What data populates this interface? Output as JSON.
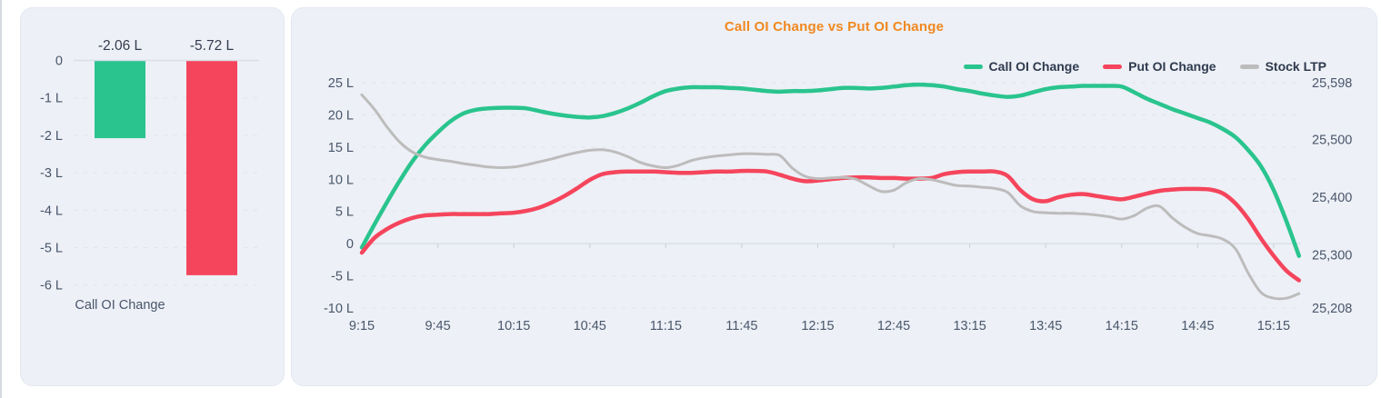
{
  "chart_data": [
    {
      "type": "bar",
      "categories": [
        "Call OI Change"
      ],
      "yticks": [
        "0",
        "-1 L",
        "-2 L",
        "-3 L",
        "-4 L",
        "-5 L",
        "-6 L"
      ],
      "ylim": [
        -6,
        0
      ],
      "series": [
        {
          "name": "Call OI Change",
          "values": [
            -2.06
          ],
          "label": "-2.06 L",
          "color": "#2ac48e"
        },
        {
          "name": "Put OI Change",
          "values": [
            -5.72
          ],
          "label": "-5.72 L",
          "color": "#f5455c"
        }
      ]
    },
    {
      "type": "line",
      "title": "Call OI Change vs Put OI Change",
      "title_color": "#f08820",
      "legend_position": "top-right",
      "grid": "dashed-horizontal",
      "x_tick_labels": [
        "9:15",
        "9:45",
        "10:15",
        "10:45",
        "11:15",
        "11:45",
        "12:15",
        "12:45",
        "13:15",
        "13:45",
        "14:15",
        "14:45",
        "15:15"
      ],
      "x_tick_minutes": [
        0,
        30,
        60,
        90,
        120,
        150,
        180,
        210,
        240,
        270,
        300,
        330,
        360
      ],
      "left_axis": {
        "ticks": [
          "25 L",
          "20 L",
          "15 L",
          "10 L",
          "5 L",
          "0",
          "-5 L",
          "-10 L"
        ],
        "tick_values": [
          25,
          20,
          15,
          10,
          5,
          0,
          -5,
          -10
        ],
        "min": -10,
        "max": 25
      },
      "right_axis": {
        "ticks": [
          "25,598",
          "25,500",
          "25,400",
          "25,300",
          "25,208"
        ],
        "tick_values": [
          25598,
          25500,
          25400,
          25300,
          25208
        ],
        "min": 25208,
        "max": 25598
      },
      "series": [
        {
          "name": "Call OI Change",
          "color": "#2ac48e",
          "axis": "left",
          "width": 4.5,
          "points": [
            [
              0,
              -0.6
            ],
            [
              5,
              3
            ],
            [
              10,
              6.5
            ],
            [
              15,
              9.8
            ],
            [
              20,
              12.8
            ],
            [
              25,
              15.3
            ],
            [
              30,
              17.3
            ],
            [
              35,
              19
            ],
            [
              40,
              20.2
            ],
            [
              45,
              20.8
            ],
            [
              50,
              21
            ],
            [
              55,
              21.1
            ],
            [
              60,
              21.1
            ],
            [
              65,
              21
            ],
            [
              70,
              20.6
            ],
            [
              75,
              20.2
            ],
            [
              80,
              19.9
            ],
            [
              85,
              19.7
            ],
            [
              90,
              19.6
            ],
            [
              95,
              19.8
            ],
            [
              100,
              20.3
            ],
            [
              105,
              21
            ],
            [
              110,
              21.9
            ],
            [
              115,
              22.9
            ],
            [
              120,
              23.7
            ],
            [
              125,
              24.1
            ],
            [
              130,
              24.3
            ],
            [
              135,
              24.3
            ],
            [
              140,
              24.3
            ],
            [
              145,
              24.2
            ],
            [
              150,
              24.1
            ],
            [
              155,
              23.9
            ],
            [
              160,
              23.7
            ],
            [
              165,
              23.6
            ],
            [
              170,
              23.7
            ],
            [
              175,
              23.7
            ],
            [
              180,
              23.8
            ],
            [
              185,
              24
            ],
            [
              190,
              24.2
            ],
            [
              195,
              24.2
            ],
            [
              200,
              24.1
            ],
            [
              205,
              24.2
            ],
            [
              210,
              24.4
            ],
            [
              215,
              24.6
            ],
            [
              220,
              24.7
            ],
            [
              225,
              24.6
            ],
            [
              230,
              24.4
            ],
            [
              235,
              24
            ],
            [
              240,
              23.7
            ],
            [
              245,
              23.3
            ],
            [
              250,
              23
            ],
            [
              255,
              22.8
            ],
            [
              260,
              23
            ],
            [
              265,
              23.5
            ],
            [
              270,
              24
            ],
            [
              275,
              24.3
            ],
            [
              280,
              24.4
            ],
            [
              285,
              24.5
            ],
            [
              290,
              24.5
            ],
            [
              295,
              24.5
            ],
            [
              300,
              24.4
            ],
            [
              305,
              23.5
            ],
            [
              310,
              22.5
            ],
            [
              315,
              21.7
            ],
            [
              320,
              20.9
            ],
            [
              325,
              20.2
            ],
            [
              330,
              19.5
            ],
            [
              335,
              18.8
            ],
            [
              340,
              17.8
            ],
            [
              345,
              16.5
            ],
            [
              350,
              14.5
            ],
            [
              355,
              12
            ],
            [
              360,
              8.3
            ],
            [
              365,
              3.5
            ],
            [
              370,
              -1.9
            ]
          ]
        },
        {
          "name": "Put OI Change",
          "color": "#f5455c",
          "axis": "left",
          "width": 4.5,
          "points": [
            [
              0,
              -1.4
            ],
            [
              5,
              0.9
            ],
            [
              10,
              2.3
            ],
            [
              15,
              3.3
            ],
            [
              20,
              4
            ],
            [
              25,
              4.4
            ],
            [
              30,
              4.5
            ],
            [
              35,
              4.6
            ],
            [
              40,
              4.6
            ],
            [
              45,
              4.6
            ],
            [
              50,
              4.6
            ],
            [
              55,
              4.7
            ],
            [
              60,
              4.8
            ],
            [
              65,
              5.1
            ],
            [
              70,
              5.6
            ],
            [
              75,
              6.4
            ],
            [
              80,
              7.4
            ],
            [
              85,
              8.6
            ],
            [
              90,
              9.9
            ],
            [
              95,
              10.8
            ],
            [
              100,
              11.1
            ],
            [
              105,
              11.2
            ],
            [
              110,
              11.2
            ],
            [
              115,
              11.2
            ],
            [
              120,
              11.1
            ],
            [
              125,
              11
            ],
            [
              130,
              11
            ],
            [
              135,
              11.1
            ],
            [
              140,
              11.2
            ],
            [
              145,
              11.2
            ],
            [
              150,
              11.3
            ],
            [
              155,
              11.3
            ],
            [
              160,
              11.2
            ],
            [
              165,
              10.7
            ],
            [
              170,
              10.1
            ],
            [
              175,
              9.7
            ],
            [
              180,
              9.8
            ],
            [
              185,
              10
            ],
            [
              190,
              10.2
            ],
            [
              195,
              10.3
            ],
            [
              200,
              10.3
            ],
            [
              205,
              10.2
            ],
            [
              210,
              10.2
            ],
            [
              215,
              10.1
            ],
            [
              220,
              10.1
            ],
            [
              225,
              10.2
            ],
            [
              230,
              10.8
            ],
            [
              235,
              11.1
            ],
            [
              240,
              11.2
            ],
            [
              245,
              11.2
            ],
            [
              250,
              11.2
            ],
            [
              255,
              10.5
            ],
            [
              260,
              8.3
            ],
            [
              265,
              6.9
            ],
            [
              270,
              6.6
            ],
            [
              275,
              7.2
            ],
            [
              280,
              7.6
            ],
            [
              285,
              7.7
            ],
            [
              290,
              7.4
            ],
            [
              295,
              7.1
            ],
            [
              300,
              6.9
            ],
            [
              305,
              7.3
            ],
            [
              310,
              7.8
            ],
            [
              315,
              8.2
            ],
            [
              320,
              8.4
            ],
            [
              325,
              8.5
            ],
            [
              330,
              8.5
            ],
            [
              335,
              8.4
            ],
            [
              340,
              7.8
            ],
            [
              345,
              6.2
            ],
            [
              350,
              3.8
            ],
            [
              355,
              0.8
            ],
            [
              360,
              -1.9
            ],
            [
              365,
              -4.2
            ],
            [
              370,
              -5.7
            ]
          ]
        },
        {
          "name": "Stock LTP",
          "color": "#bdbcbc",
          "axis": "right",
          "width": 3,
          "points": [
            [
              0,
              25577
            ],
            [
              5,
              25552
            ],
            [
              10,
              25521
            ],
            [
              15,
              25495
            ],
            [
              20,
              25478
            ],
            [
              25,
              25469
            ],
            [
              30,
              25465
            ],
            [
              35,
              25462
            ],
            [
              40,
              25458
            ],
            [
              45,
              25455
            ],
            [
              50,
              25452
            ],
            [
              55,
              25451
            ],
            [
              60,
              25452
            ],
            [
              65,
              25456
            ],
            [
              70,
              25461
            ],
            [
              75,
              25466
            ],
            [
              80,
              25472
            ],
            [
              85,
              25477
            ],
            [
              90,
              25481
            ],
            [
              95,
              25482
            ],
            [
              100,
              25478
            ],
            [
              105,
              25470
            ],
            [
              110,
              25460
            ],
            [
              115,
              25454
            ],
            [
              120,
              25451
            ],
            [
              125,
              25455
            ],
            [
              130,
              25463
            ],
            [
              135,
              25468
            ],
            [
              140,
              25471
            ],
            [
              145,
              25473
            ],
            [
              150,
              25475
            ],
            [
              155,
              25475
            ],
            [
              160,
              25474
            ],
            [
              165,
              25472
            ],
            [
              170,
              25450
            ],
            [
              175,
              25436
            ],
            [
              180,
              25432
            ],
            [
              185,
              25433
            ],
            [
              190,
              25434
            ],
            [
              195,
              25431
            ],
            [
              200,
              25420
            ],
            [
              205,
              25410
            ],
            [
              210,
              25412
            ],
            [
              215,
              25425
            ],
            [
              220,
              25432
            ],
            [
              225,
              25430
            ],
            [
              230,
              25425
            ],
            [
              235,
              25420
            ],
            [
              240,
              25419
            ],
            [
              245,
              25417
            ],
            [
              250,
              25415
            ],
            [
              255,
              25408
            ],
            [
              260,
              25385
            ],
            [
              265,
              25375
            ],
            [
              270,
              25373
            ],
            [
              275,
              25372
            ],
            [
              280,
              25372
            ],
            [
              285,
              25371
            ],
            [
              290,
              25369
            ],
            [
              295,
              25366
            ],
            [
              300,
              25362
            ],
            [
              305,
              25368
            ],
            [
              310,
              25381
            ],
            [
              315,
              25384
            ],
            [
              320,
              25364
            ],
            [
              325,
              25348
            ],
            [
              330,
              25337
            ],
            [
              335,
              25333
            ],
            [
              340,
              25327
            ],
            [
              345,
              25310
            ],
            [
              350,
              25268
            ],
            [
              355,
              25235
            ],
            [
              360,
              25225
            ],
            [
              365,
              25225
            ],
            [
              370,
              25233
            ]
          ]
        }
      ]
    }
  ]
}
